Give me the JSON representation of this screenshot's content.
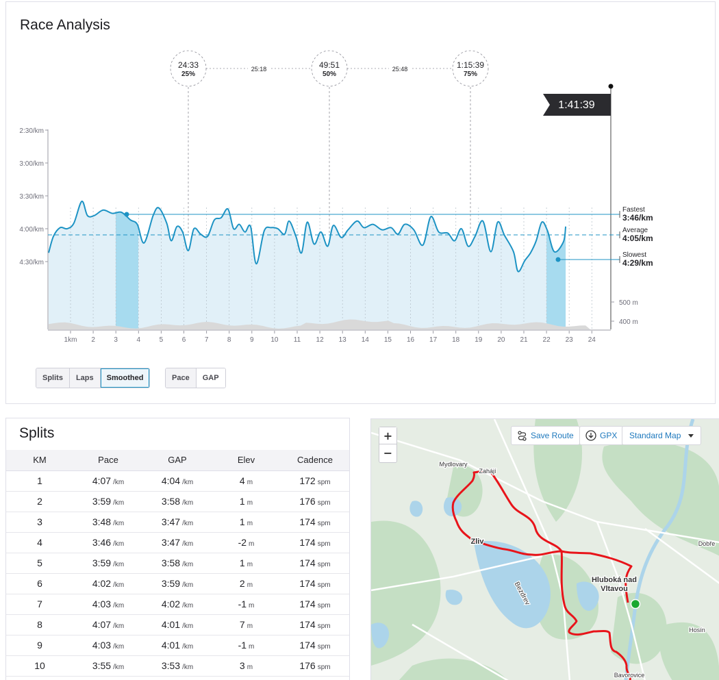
{
  "analysis": {
    "title": "Race Analysis",
    "finish_time": "1:41:39",
    "y_ticks": [
      "2:30/km",
      "3:00/km",
      "3:30/km",
      "4:00/km",
      "4:30/km"
    ],
    "x_ticks": [
      "1km",
      "2",
      "3",
      "4",
      "5",
      "6",
      "7",
      "8",
      "9",
      "10",
      "11",
      "12",
      "13",
      "14",
      "15",
      "16",
      "17",
      "18",
      "19",
      "20",
      "21",
      "22",
      "23",
      "24"
    ],
    "elev_ticks": [
      "500 m",
      "400 m"
    ],
    "checkpoints": [
      {
        "time": "24:33",
        "pct": "25%"
      },
      {
        "time": "49:51",
        "pct": "50%"
      },
      {
        "time": "1:15:39",
        "pct": "75%"
      }
    ],
    "intervals": [
      "25:18",
      "25:48"
    ],
    "markers": {
      "fastest": {
        "label": "Fastest",
        "value": "3:46/km"
      },
      "average": {
        "label": "Average",
        "value": "4:05/km"
      },
      "slowest": {
        "label": "Slowest",
        "value": "4:29/km"
      }
    },
    "buttons": {
      "view": [
        "Splits",
        "Laps",
        "Smoothed"
      ],
      "view_active": "Smoothed",
      "metric": [
        "Pace",
        "GAP"
      ],
      "metric_active": "Pace"
    },
    "colors": {
      "line": "#1d93c4",
      "fill": "#e1f0f8",
      "highlight": "#a7dbef",
      "elevation": "#d9d9d9"
    }
  },
  "splits": {
    "title": "Splits",
    "columns": [
      "KM",
      "Pace",
      "GAP",
      "Elev",
      "Cadence"
    ],
    "units": {
      "pace": "/km",
      "gap": "/km",
      "elev": "m",
      "cadence": "spm"
    },
    "rows": [
      {
        "km": "1",
        "pace": "4:07",
        "gap": "4:04",
        "elev": "4",
        "cadence": "172"
      },
      {
        "km": "2",
        "pace": "3:59",
        "gap": "3:58",
        "elev": "1",
        "cadence": "176"
      },
      {
        "km": "3",
        "pace": "3:48",
        "gap": "3:47",
        "elev": "1",
        "cadence": "174"
      },
      {
        "km": "4",
        "pace": "3:46",
        "gap": "3:47",
        "elev": "-2",
        "cadence": "174"
      },
      {
        "km": "5",
        "pace": "3:59",
        "gap": "3:58",
        "elev": "1",
        "cadence": "174"
      },
      {
        "km": "6",
        "pace": "4:02",
        "gap": "3:59",
        "elev": "2",
        "cadence": "174"
      },
      {
        "km": "7",
        "pace": "4:03",
        "gap": "4:02",
        "elev": "-1",
        "cadence": "174"
      },
      {
        "km": "8",
        "pace": "4:07",
        "gap": "4:01",
        "elev": "7",
        "cadence": "174"
      },
      {
        "km": "9",
        "pace": "4:03",
        "gap": "4:01",
        "elev": "-1",
        "cadence": "174"
      },
      {
        "km": "10",
        "pace": "3:55",
        "gap": "3:53",
        "elev": "3",
        "cadence": "176"
      }
    ]
  },
  "map": {
    "zoom_in": "+",
    "zoom_out": "−",
    "save_route": "Save Route",
    "gpx": "GPX",
    "map_type": "Standard Map",
    "place_labels": [
      "Mydlovary",
      "Zahájí",
      "Zliv",
      "Hluboká nad",
      "Vltavou",
      "Bezdrev",
      "Dobře",
      "Hosín",
      "Bavorovice"
    ],
    "colors": {
      "route": "#e8141a",
      "start": "#1aa830",
      "land": "#e6ede4",
      "forest": "#c5dfc4",
      "water": "#acd4ea",
      "road": "#ffffff"
    }
  }
}
